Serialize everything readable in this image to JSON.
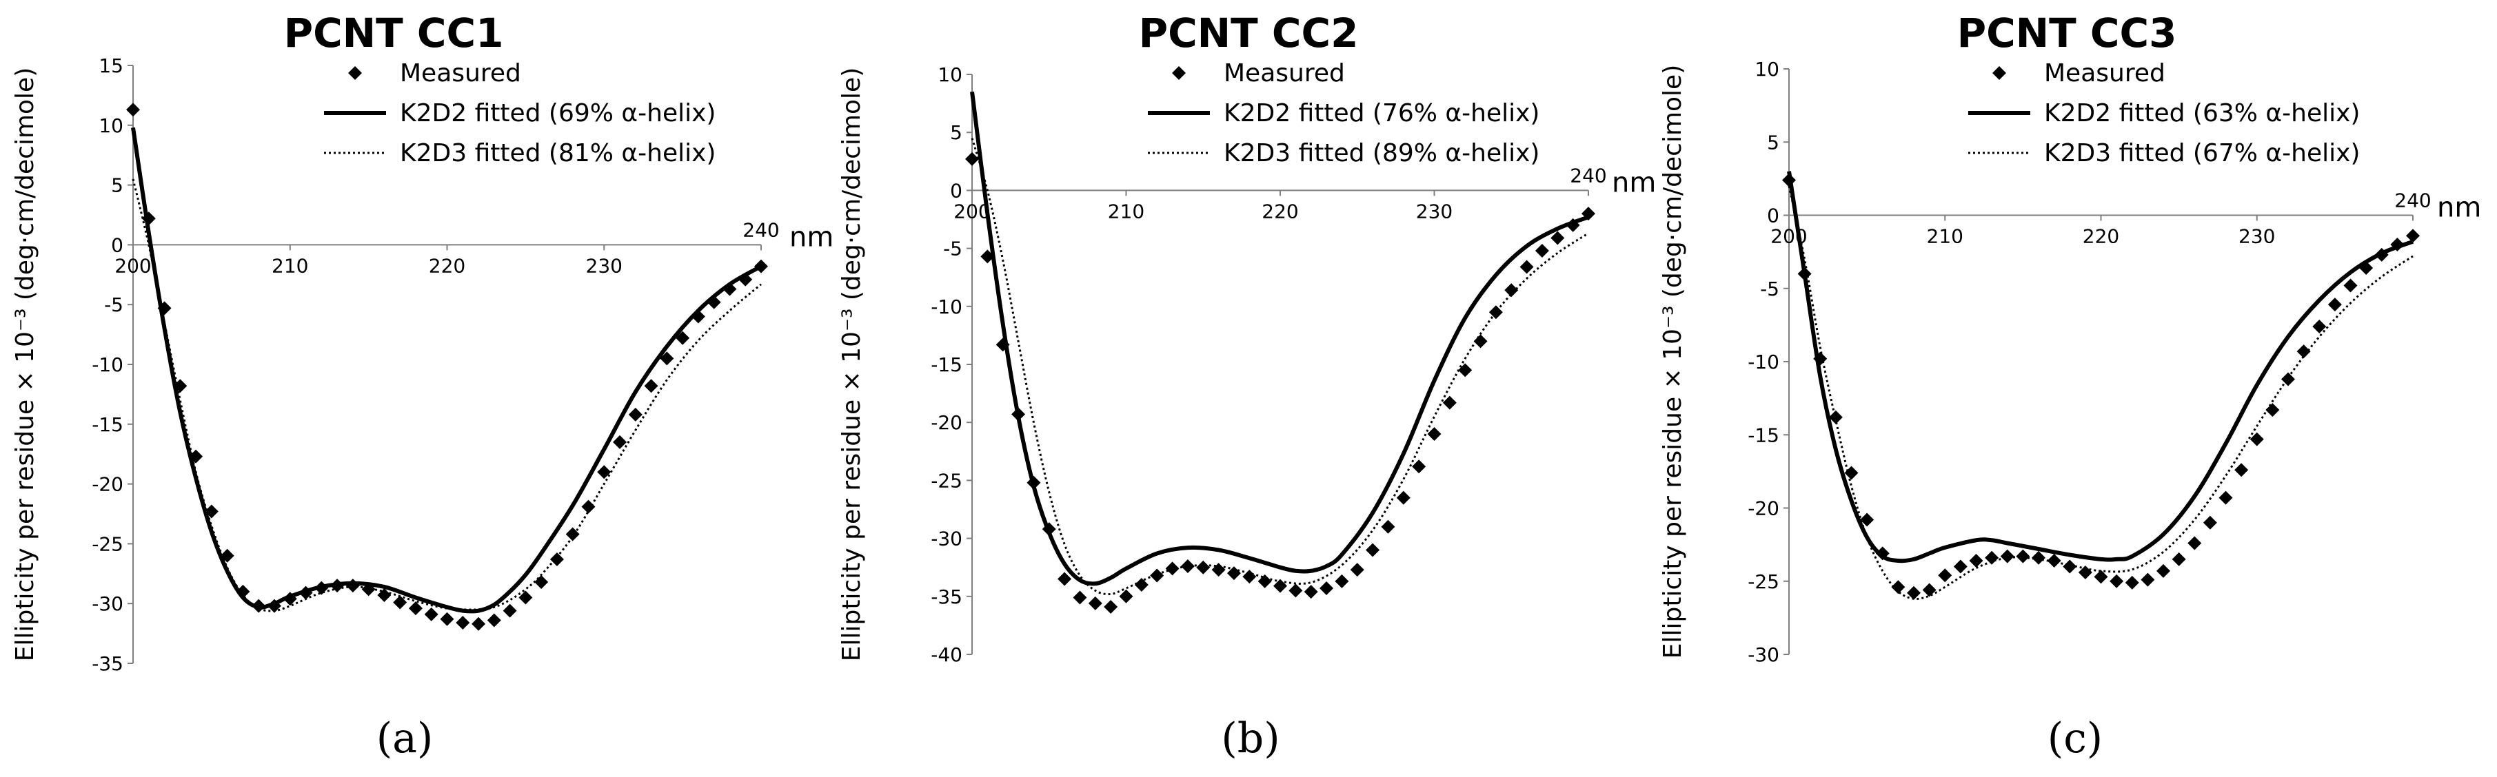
{
  "chart_data": [
    {
      "type": "line",
      "title": "PCNT CC1",
      "caption": "(a)",
      "ylabel": "Ellipticity per residue × 10⁻³ (deg·cm/decimole)",
      "x_unit": "nm",
      "xlim": [
        200,
        240
      ],
      "ylim": [
        -35,
        15
      ],
      "yticks": [
        15,
        10,
        5,
        0,
        -5,
        -10,
        -15,
        -20,
        -25,
        -30,
        -35
      ],
      "xticks": [
        200,
        210,
        220,
        230,
        240
      ],
      "legend_position": "top-center",
      "series": [
        {
          "name": "Measured",
          "style": "markers",
          "x": [
            200,
            201,
            202,
            203,
            204,
            205,
            206,
            207,
            208,
            209,
            210,
            211,
            212,
            213,
            214,
            215,
            216,
            217,
            218,
            219,
            220,
            221,
            222,
            223,
            224,
            225,
            226,
            227,
            228,
            229,
            230,
            231,
            232,
            233,
            234,
            235,
            236,
            237,
            238,
            239,
            240
          ],
          "y": [
            11.3,
            2.2,
            -5.3,
            -11.8,
            -17.7,
            -22.3,
            -26.0,
            -29.0,
            -30.2,
            -30.2,
            -29.6,
            -29.1,
            -28.7,
            -28.5,
            -28.5,
            -28.8,
            -29.3,
            -29.9,
            -30.4,
            -30.9,
            -31.3,
            -31.6,
            -31.7,
            -31.4,
            -30.6,
            -29.5,
            -28.2,
            -26.3,
            -24.2,
            -21.9,
            -19.0,
            -16.5,
            -14.2,
            -11.8,
            -9.5,
            -7.8,
            -6.0,
            -4.8,
            -3.7,
            -2.9,
            -1.8
          ]
        },
        {
          "name": "K2D2 fitted (69% α-helix)",
          "style": "solid",
          "x": [
            200,
            201,
            202,
            203,
            204,
            205,
            206,
            207,
            208,
            209,
            210,
            212,
            214,
            216,
            218,
            220,
            221,
            222,
            223,
            224,
            225,
            226,
            228,
            230,
            232,
            234,
            236,
            238,
            240
          ],
          "y": [
            9.8,
            1.0,
            -7.0,
            -14.0,
            -19.5,
            -24.0,
            -27.3,
            -29.5,
            -30.3,
            -30.0,
            -29.4,
            -28.6,
            -28.3,
            -28.6,
            -29.5,
            -30.3,
            -30.6,
            -30.6,
            -30.1,
            -29.0,
            -27.6,
            -25.8,
            -21.8,
            -17.1,
            -12.3,
            -8.5,
            -5.5,
            -3.3,
            -1.8
          ]
        },
        {
          "name": "K2D3 fitted (81% α-helix)",
          "style": "dotted",
          "x": [
            200,
            201,
            202,
            203,
            204,
            205,
            206,
            207,
            208,
            209,
            210,
            212,
            214,
            216,
            218,
            220,
            222,
            223,
            224,
            225,
            226,
            228,
            230,
            232,
            234,
            236,
            238,
            240
          ],
          "y": [
            5.5,
            0.0,
            -6.5,
            -13.0,
            -19.0,
            -23.5,
            -27.0,
            -29.3,
            -30.4,
            -30.6,
            -30.2,
            -29.1,
            -28.6,
            -29.0,
            -29.8,
            -30.4,
            -30.5,
            -30.3,
            -29.7,
            -28.8,
            -27.6,
            -24.4,
            -20.0,
            -15.5,
            -11.3,
            -8.0,
            -5.5,
            -3.3
          ]
        }
      ]
    },
    {
      "type": "line",
      "title": "PCNT CC2",
      "caption": "(b)",
      "ylabel": "Ellipticity per residue × 10⁻³ (deg·cm/decimole)",
      "x_unit": "nm",
      "xlim": [
        200,
        240
      ],
      "ylim": [
        -40,
        10
      ],
      "yticks": [
        10,
        5,
        0,
        -5,
        -10,
        -15,
        -20,
        -25,
        -30,
        -35,
        -40
      ],
      "xticks": [
        200,
        210,
        220,
        230,
        240
      ],
      "legend_position": "top-center",
      "series": [
        {
          "name": "Measured",
          "style": "markers",
          "x": [
            200,
            201,
            202,
            203,
            204,
            205,
            206,
            207,
            208,
            209,
            210,
            211,
            212,
            213,
            214,
            215,
            216,
            217,
            218,
            219,
            220,
            221,
            222,
            223,
            224,
            225,
            226,
            227,
            228,
            229,
            230,
            231,
            232,
            233,
            234,
            235,
            236,
            237,
            238,
            239,
            240
          ],
          "y": [
            2.7,
            -5.7,
            -13.3,
            -19.3,
            -25.2,
            -29.2,
            -33.5,
            -35.1,
            -35.6,
            -35.9,
            -35.0,
            -34.0,
            -33.2,
            -32.6,
            -32.4,
            -32.5,
            -32.7,
            -33.0,
            -33.3,
            -33.7,
            -34.1,
            -34.5,
            -34.6,
            -34.3,
            -33.7,
            -32.7,
            -31.0,
            -29.0,
            -26.5,
            -23.8,
            -21.0,
            -18.3,
            -15.5,
            -13.0,
            -10.5,
            -8.6,
            -6.6,
            -5.2,
            -4.1,
            -3.0,
            -2.0
          ]
        },
        {
          "name": "K2D2 fitted (76% α-helix)",
          "style": "solid",
          "x": [
            200,
            201,
            202,
            203,
            204,
            205,
            206,
            207,
            208,
            209,
            210,
            212,
            214,
            216,
            218,
            220,
            221,
            222,
            223,
            224,
            226,
            228,
            230,
            232,
            234,
            236,
            238,
            240
          ],
          "y": [
            8.5,
            -2.0,
            -11.5,
            -19.5,
            -25.5,
            -29.5,
            -32.2,
            -33.6,
            -33.9,
            -33.4,
            -32.6,
            -31.3,
            -30.8,
            -31.0,
            -31.7,
            -32.5,
            -32.8,
            -32.8,
            -32.4,
            -31.4,
            -27.8,
            -22.7,
            -16.4,
            -11.0,
            -7.3,
            -4.8,
            -3.3,
            -2.3
          ]
        },
        {
          "name": "K2D3 fitted (89% α-helix)",
          "style": "dotted",
          "x": [
            200,
            201,
            202,
            203,
            204,
            205,
            206,
            207,
            208,
            209,
            210,
            212,
            214,
            216,
            218,
            220,
            222,
            224,
            226,
            228,
            230,
            232,
            234,
            236,
            238,
            240
          ],
          "y": [
            4.5,
            0.0,
            -6.0,
            -13.0,
            -20.0,
            -26.0,
            -30.5,
            -33.2,
            -34.5,
            -34.8,
            -34.3,
            -33.1,
            -32.4,
            -32.4,
            -33.0,
            -33.7,
            -33.8,
            -32.3,
            -29.3,
            -24.9,
            -19.5,
            -14.5,
            -10.5,
            -7.6,
            -5.4,
            -3.7
          ]
        }
      ]
    },
    {
      "type": "line",
      "title": "PCNT CC3",
      "caption": "(c)",
      "ylabel": "Ellipticity per residue × 10⁻³ (deg·cm/decimole)",
      "x_unit": "nm",
      "xlim": [
        200,
        240
      ],
      "ylim": [
        -30,
        10
      ],
      "yticks": [
        10,
        5,
        0,
        -5,
        -10,
        -15,
        -20,
        -25,
        -30
      ],
      "xticks": [
        200,
        210,
        220,
        230,
        240
      ],
      "legend_position": "top-center",
      "series": [
        {
          "name": "Measured",
          "style": "markers",
          "x": [
            200,
            201,
            202,
            203,
            204,
            205,
            206,
            207,
            208,
            209,
            210,
            211,
            212,
            213,
            214,
            215,
            216,
            217,
            218,
            219,
            220,
            221,
            222,
            223,
            224,
            225,
            226,
            227,
            228,
            229,
            230,
            231,
            232,
            233,
            234,
            235,
            236,
            237,
            238,
            239,
            240
          ],
          "y": [
            2.4,
            -4.0,
            -9.8,
            -13.8,
            -17.6,
            -20.8,
            -23.1,
            -25.4,
            -25.8,
            -25.6,
            -24.6,
            -24.0,
            -23.6,
            -23.4,
            -23.3,
            -23.3,
            -23.4,
            -23.6,
            -24.0,
            -24.4,
            -24.7,
            -25.0,
            -25.1,
            -24.9,
            -24.3,
            -23.5,
            -22.4,
            -21.0,
            -19.3,
            -17.4,
            -15.3,
            -13.3,
            -11.2,
            -9.3,
            -7.6,
            -6.1,
            -4.8,
            -3.6,
            -2.7,
            -2.0,
            -1.4
          ]
        },
        {
          "name": "K2D2 fitted (63% α-helix)",
          "style": "solid",
          "x": [
            200,
            201,
            202,
            203,
            204,
            205,
            206,
            207,
            208,
            209,
            210,
            212,
            213,
            214,
            216,
            218,
            220,
            221,
            222,
            224,
            226,
            228,
            230,
            232,
            234,
            236,
            238,
            240
          ],
          "y": [
            3.0,
            -4.0,
            -11.0,
            -16.0,
            -19.5,
            -22.0,
            -23.3,
            -23.6,
            -23.5,
            -23.1,
            -22.7,
            -22.2,
            -22.2,
            -22.4,
            -22.8,
            -23.2,
            -23.5,
            -23.5,
            -23.3,
            -21.8,
            -19.2,
            -15.6,
            -11.6,
            -8.3,
            -5.8,
            -3.9,
            -2.6,
            -1.8
          ]
        },
        {
          "name": "K2D3 fitted (67% α-helix)",
          "style": "dotted",
          "x": [
            200,
            201,
            202,
            203,
            204,
            205,
            206,
            207,
            208,
            209,
            210,
            212,
            214,
            216,
            218,
            220,
            222,
            224,
            226,
            228,
            230,
            232,
            234,
            236,
            238,
            240
          ],
          "y": [
            2.0,
            -3.0,
            -9.0,
            -14.0,
            -18.5,
            -22.0,
            -24.3,
            -25.7,
            -26.2,
            -26.0,
            -25.4,
            -24.1,
            -23.4,
            -23.5,
            -23.9,
            -24.3,
            -24.2,
            -23.0,
            -20.8,
            -17.8,
            -14.4,
            -11.1,
            -8.3,
            -6.0,
            -4.2,
            -2.8
          ]
        }
      ]
    }
  ]
}
